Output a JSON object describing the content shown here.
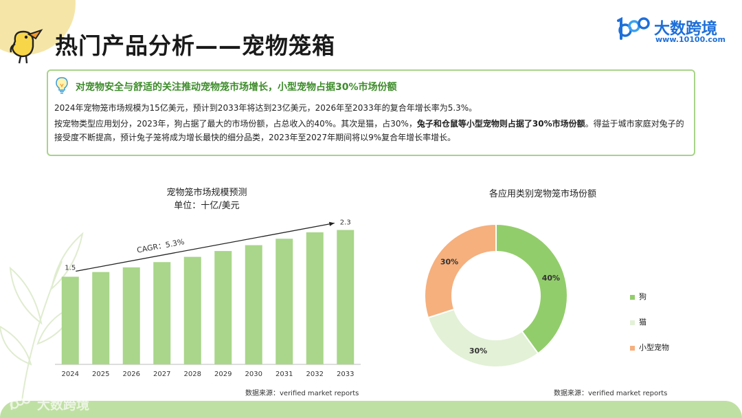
{
  "header": {
    "title": "热门产品分析——宠物笼箱",
    "brand_name": "大数跨境",
    "brand_url": "www.10100.com",
    "brand_logo_text": "100"
  },
  "summary": {
    "headline": "对宠物安全与舒适的关注推动宠物笼市场增长，小型宠物占据30%市场份额",
    "para1": "2024年宠物笼市场规模为15亿美元，预计到2033年将达到23亿美元，2026年至2033年的复合年增长率为5.3%。",
    "para2_a": "按宠物类型应用划分，2023年，狗占据了最大的市场份额，占总收入的40%。其次是猫，占30%，",
    "para2_bold": "兔子和仓鼠等小型宠物则占据了30%市场份额",
    "para2_b": "。得益于城市家庭对兔子的接受度不断提高，预计兔子笼将成为增长最快的细分品类，2023年至2027年期间将以9%复合年增长率增长。"
  },
  "chart_data": [
    {
      "type": "bar",
      "title": "宠物笼市场规模预测",
      "subtitle": "单位：十亿/美元",
      "categories": [
        "2024",
        "2025",
        "2026",
        "2027",
        "2028",
        "2029",
        "2030",
        "2031",
        "2032",
        "2033"
      ],
      "values": [
        1.5,
        1.58,
        1.66,
        1.75,
        1.84,
        1.94,
        2.04,
        2.15,
        2.26,
        2.3
      ],
      "data_labels": {
        "first": "1.5",
        "last": "2.3"
      },
      "annotation": "CAGR：5.3%",
      "ylim": [
        0,
        2.4
      ],
      "color": "#a9d68a",
      "source": "数据来源：verified market reports"
    },
    {
      "type": "pie",
      "title": "各应用类别宠物笼市场份额",
      "labels": [
        "狗",
        "猫",
        "小型宠物"
      ],
      "values": [
        40,
        30,
        30
      ],
      "value_labels": [
        "40%",
        "30%",
        "30%"
      ],
      "colors": [
        "#92cd6b",
        "#e3f1d7",
        "#f5b07e"
      ],
      "donut": true,
      "source": "数据来源：verified market reports"
    }
  ],
  "footer": {
    "watermark": "大数跨境",
    "watermark_logo": "100"
  }
}
